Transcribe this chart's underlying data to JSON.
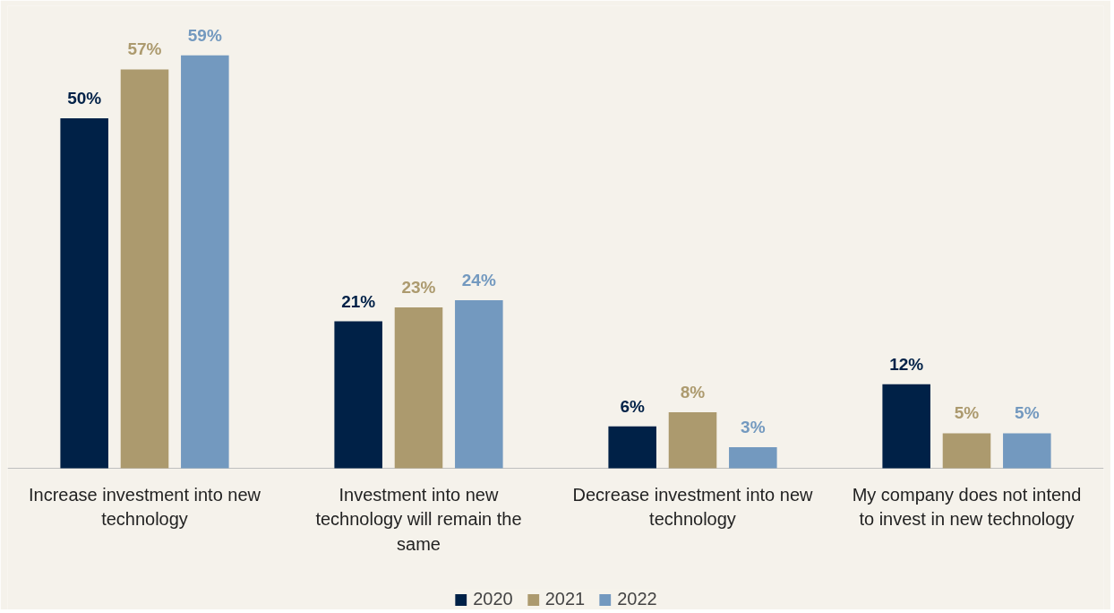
{
  "chart_data": {
    "type": "bar",
    "categories": [
      "Increase investment into new technology",
      "Investment into new technology will remain the same",
      "Decrease investment into new technology",
      "My company does not intend to invest in new technology"
    ],
    "series": [
      {
        "name": "2020",
        "color": "#002147",
        "values": [
          50,
          21,
          6,
          12
        ],
        "value_labels": [
          "50%",
          "21%",
          "6%",
          "12%"
        ]
      },
      {
        "name": "2021",
        "color": "#ac9a6e",
        "values": [
          57,
          23,
          8,
          5
        ],
        "value_labels": [
          "57%",
          "23%",
          "8%",
          "5%"
        ]
      },
      {
        "name": "2022",
        "color": "#7399bf",
        "values": [
          59,
          24,
          3,
          5
        ],
        "value_labels": [
          "59%",
          "24%",
          "3%",
          "5%"
        ]
      }
    ],
    "legend": "bottom",
    "grid": false
  }
}
